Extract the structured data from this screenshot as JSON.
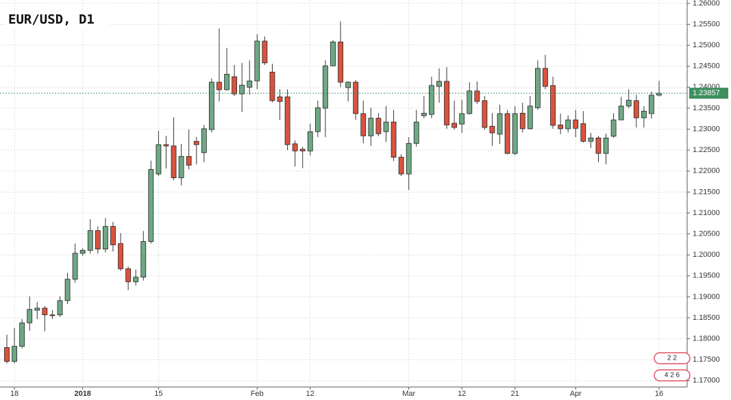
{
  "chart_data": {
    "type": "candlestick",
    "title": "EUR/USD, D1",
    "open": [
      1.1779,
      1.1746,
      1.1782,
      1.1838,
      1.1868,
      1.1873,
      1.1857,
      1.1857,
      1.1891,
      1.1942,
      1.2004,
      1.2011,
      1.2058,
      1.2014,
      1.2068,
      1.2027,
      1.1967,
      1.1936,
      1.1947,
      1.2032,
      1.2193,
      1.2263,
      1.226,
      1.2184,
      1.2235,
      1.2271,
      1.2244,
      1.2299,
      1.2412,
      1.2394,
      1.2425,
      1.2384,
      1.24,
      1.2415,
      1.251,
      1.2436,
      1.2377,
      1.2377,
      1.2265,
      1.2252,
      1.2248,
      1.2294,
      1.235,
      1.2451,
      1.2508,
      1.2399,
      1.2412,
      1.2337,
      1.2284,
      1.2326,
      1.2294,
      1.2317,
      1.2233,
      1.2193,
      1.2266,
      1.2332,
      1.2335,
      1.2402,
      1.2414,
      1.2314,
      1.2312,
      1.2337,
      1.2391,
      1.2368,
      1.2307,
      1.2288,
      1.2337,
      1.2242,
      1.2338,
      1.2301,
      1.2351,
      1.2445,
      1.2404,
      1.231,
      1.2301,
      1.2322,
      1.2313,
      1.2271,
      1.2279,
      1.2242,
      1.2283,
      1.2322,
      1.2355,
      1.2368,
      1.2327,
      1.2337,
      1.2381
    ],
    "high": [
      1.181,
      1.1826,
      1.1847,
      1.1901,
      1.1888,
      1.1878,
      1.1868,
      1.1901,
      1.1957,
      1.2027,
      1.2016,
      1.2085,
      1.2068,
      1.2088,
      1.2079,
      1.2052,
      1.1972,
      1.1965,
      1.2057,
      1.2225,
      1.2296,
      1.2284,
      1.2328,
      1.2265,
      1.2299,
      1.2281,
      1.231,
      1.2421,
      1.254,
      1.2494,
      1.2453,
      1.2458,
      1.2464,
      1.2526,
      1.2521,
      1.2456,
      1.2395,
      1.2395,
      1.2273,
      1.2258,
      1.2313,
      1.2368,
      1.2464,
      1.2512,
      1.2557,
      1.2414,
      1.2417,
      1.2368,
      1.2351,
      1.2338,
      1.2355,
      1.2346,
      1.224,
      1.2281,
      1.2346,
      1.2379,
      1.2425,
      1.2445,
      1.2448,
      1.2368,
      1.237,
      1.2412,
      1.2414,
      1.2379,
      1.2338,
      1.2358,
      1.2346,
      1.2355,
      1.2363,
      1.2379,
      1.2464,
      1.2477,
      1.2425,
      1.2337,
      1.2333,
      1.2346,
      1.2343,
      1.2291,
      1.2284,
      1.2289,
      1.2338,
      1.2377,
      1.2395,
      1.2382,
      1.2355,
      1.2389,
      1.2415
    ],
    "low": [
      1.1741,
      1.1741,
      1.1777,
      1.1819,
      1.1847,
      1.1818,
      1.1847,
      1.1852,
      1.1883,
      1.1934,
      1.1998,
      1.2003,
      1.2003,
      1.2006,
      1.2008,
      1.1962,
      1.1916,
      1.1927,
      1.1939,
      1.2027,
      1.2188,
      1.2206,
      1.2178,
      1.2166,
      1.2204,
      1.2216,
      1.2221,
      1.2292,
      1.2366,
      1.2392,
      1.2379,
      1.2341,
      1.2382,
      1.2395,
      1.2453,
      1.2364,
      1.2322,
      1.225,
      1.2211,
      1.2207,
      1.2237,
      1.2281,
      1.2281,
      1.245,
      1.24,
      1.2366,
      1.2322,
      1.2266,
      1.226,
      1.2283,
      1.227,
      1.2224,
      1.2188,
      1.2155,
      1.2258,
      1.2326,
      1.2326,
      1.2363,
      1.2301,
      1.2299,
      1.2291,
      1.2335,
      1.236,
      1.2299,
      1.226,
      1.2265,
      1.224,
      1.2238,
      1.2292,
      1.2299,
      1.2346,
      1.2395,
      1.2301,
      1.2288,
      1.2292,
      1.2281,
      1.2268,
      1.2255,
      1.2221,
      1.2216,
      1.2279,
      1.2322,
      1.235,
      1.2304,
      1.2304,
      1.2325,
      1.2378
    ],
    "close": [
      1.1746,
      1.1782,
      1.1838,
      1.187,
      1.1873,
      1.1857,
      1.1855,
      1.1891,
      1.1942,
      1.2004,
      1.2011,
      1.2058,
      1.2014,
      1.2068,
      1.2024,
      1.1967,
      1.1936,
      1.1947,
      1.2032,
      1.2204,
      1.2263,
      1.226,
      1.2184,
      1.2235,
      1.2214,
      1.2263,
      1.2301,
      1.2412,
      1.2394,
      1.2431,
      1.2384,
      1.2405,
      1.2415,
      1.251,
      1.2458,
      1.2368,
      1.2366,
      1.2263,
      1.2248,
      1.2248,
      1.2294,
      1.2351,
      1.2451,
      1.2508,
      1.2412,
      1.2412,
      1.2337,
      1.2284,
      1.2326,
      1.2289,
      1.2317,
      1.2233,
      1.2193,
      1.2266,
      1.2317,
      1.2338,
      1.2404,
      1.2414,
      1.231,
      1.2304,
      1.2337,
      1.2391,
      1.2366,
      1.2304,
      1.2291,
      1.2337,
      1.2242,
      1.2337,
      1.2301,
      1.2355,
      1.2445,
      1.2402,
      1.2309,
      1.2301,
      1.2322,
      1.2302,
      1.2271,
      1.2279,
      1.2242,
      1.2279,
      1.2322,
      1.2355,
      1.2369,
      1.2327,
      1.2343,
      1.2381,
      1.23857
    ],
    "up_color": "#6ea884",
    "down_color": "#d9533f",
    "last_price": 1.23857,
    "last_price_color": "#3f8f5f",
    "ylim": [
      1.1685,
      1.2608
    ],
    "yticks": [
      {
        "value": 1.17,
        "label": "1.17000"
      },
      {
        "value": 1.175,
        "label": "1.17500"
      },
      {
        "value": 1.18,
        "label": "1.18000"
      },
      {
        "value": 1.185,
        "label": "1.18500"
      },
      {
        "value": 1.19,
        "label": "1.19000"
      },
      {
        "value": 1.195,
        "label": "1.19500"
      },
      {
        "value": 1.2,
        "label": "1.20000"
      },
      {
        "value": 1.205,
        "label": "1.20500"
      },
      {
        "value": 1.21,
        "label": "1.21000"
      },
      {
        "value": 1.215,
        "label": "1.21500"
      },
      {
        "value": 1.22,
        "label": "1.22000"
      },
      {
        "value": 1.225,
        "label": "1.22500"
      },
      {
        "value": 1.23,
        "label": "1.23000"
      },
      {
        "value": 1.235,
        "label": "1.23500"
      },
      {
        "value": 1.24,
        "label": "1.24000"
      },
      {
        "value": 1.245,
        "label": "1.24500"
      },
      {
        "value": 1.25,
        "label": "1.25000"
      },
      {
        "value": 1.255,
        "label": "1.25500"
      },
      {
        "value": 1.26,
        "label": "1.26000"
      }
    ],
    "xticks": [
      {
        "value": 1,
        "label": "18"
      },
      {
        "value": 10,
        "label": "2018"
      },
      {
        "value": 20,
        "label": "15"
      },
      {
        "value": 33,
        "label": "Feb"
      },
      {
        "value": 40,
        "label": "12"
      },
      {
        "value": 53,
        "label": "Mar"
      },
      {
        "value": 60,
        "label": "12"
      },
      {
        "value": 67,
        "label": "21"
      },
      {
        "value": 75,
        "label": "Apr"
      },
      {
        "value": 86,
        "label": "16"
      }
    ],
    "events": [
      "2 2",
      "4 2 6"
    ],
    "grid": true
  }
}
